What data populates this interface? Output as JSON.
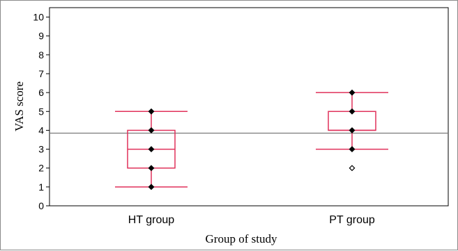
{
  "chart_data": {
    "type": "boxplot",
    "title": "",
    "xlabel": "Group of study",
    "ylabel": "VAS score",
    "ylim": [
      0,
      10.5
    ],
    "yticks": [
      0,
      1,
      2,
      3,
      4,
      5,
      6,
      7,
      8,
      9,
      10
    ],
    "categories": [
      "HT group",
      "PT group"
    ],
    "boxes": [
      {
        "category": "HT group",
        "whisker_low": 1,
        "q1": 2,
        "median": 3,
        "q3": 4,
        "whisker_high": 5,
        "points": [
          1,
          2,
          3,
          4,
          5
        ],
        "outliers": []
      },
      {
        "category": "PT group",
        "whisker_low": 3,
        "q1": 4,
        "median": 4,
        "q3": 5,
        "whisker_high": 6,
        "points": [
          3,
          4,
          5,
          6
        ],
        "outliers": [
          2
        ]
      }
    ],
    "reference_line": 3.85,
    "grid": false,
    "colors": {
      "box": "#e0315a",
      "reference_line": "#7a7a7a",
      "axis": "#000000",
      "point": "#000000"
    }
  }
}
